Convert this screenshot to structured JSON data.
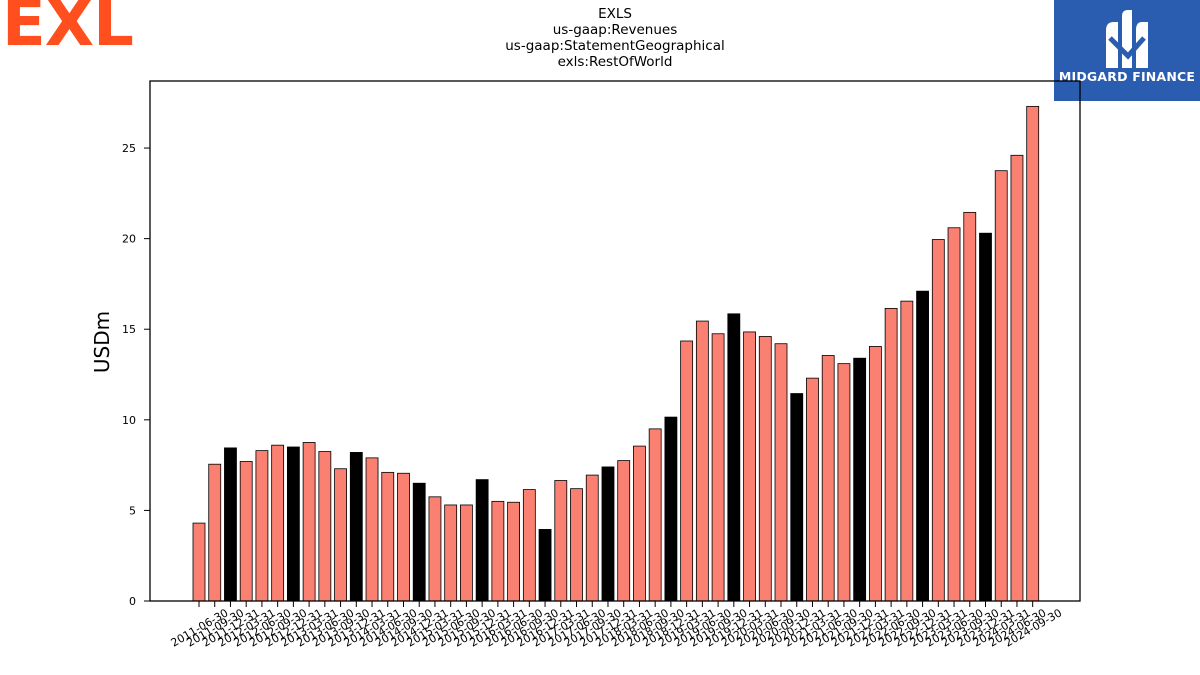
{
  "brand": {
    "logo_text": "EXL",
    "color": "#ff4f1f"
  },
  "partner": {
    "name": "MIDGARD FINANCE",
    "bg_color": "#2a5cb0",
    "logo_icon": "midgard-m-icon"
  },
  "colors": {
    "bar": "#fa8072",
    "highlight": "#000000",
    "edge": "#000000"
  },
  "chart_data": {
    "type": "bar",
    "title_lines": [
      "EXLS",
      "us-gaap:Revenues",
      "us-gaap:StatementGeographical",
      "exls:RestOfWorld"
    ],
    "xlabel": "",
    "ylabel": "USDm",
    "ylim": [
      0,
      28.7
    ],
    "yticks": [
      0,
      5,
      10,
      15,
      20,
      25
    ],
    "grid": false,
    "categories": [
      "2011-06-30",
      "2011-09-30",
      "2011-12-31",
      "2012-03-31",
      "2012-06-30",
      "2012-09-30",
      "2012-12-31",
      "2013-03-31",
      "2013-06-30",
      "2013-09-30",
      "2013-12-31",
      "2014-03-31",
      "2014-06-30",
      "2014-09-30",
      "2014-12-31",
      "2015-03-31",
      "2015-06-30",
      "2015-09-30",
      "2015-12-31",
      "2016-03-31",
      "2016-06-30",
      "2016-09-30",
      "2016-12-31",
      "2017-03-31",
      "2017-06-30",
      "2017-09-30",
      "2017-12-31",
      "2018-03-31",
      "2018-06-30",
      "2018-09-30",
      "2018-12-31",
      "2019-03-31",
      "2019-06-30",
      "2019-09-30",
      "2019-12-31",
      "2020-03-31",
      "2020-06-30",
      "2020-09-30",
      "2020-12-31",
      "2021-03-31",
      "2021-06-30",
      "2021-09-30",
      "2021-12-31",
      "2022-03-31",
      "2022-06-30",
      "2022-09-30",
      "2022-12-31",
      "2023-03-31",
      "2023-06-30",
      "2023-09-30",
      "2023-12-31",
      "2024-03-31",
      "2024-06-30",
      "2024-09-30"
    ],
    "values": [
      4.3,
      7.55,
      8.45,
      7.7,
      8.3,
      8.6,
      8.5,
      8.75,
      8.25,
      7.3,
      8.2,
      7.9,
      7.1,
      7.05,
      6.5,
      5.75,
      5.3,
      5.3,
      6.7,
      5.5,
      5.45,
      6.15,
      3.95,
      6.65,
      6.2,
      6.95,
      7.4,
      7.75,
      8.55,
      9.5,
      10.15,
      14.35,
      15.45,
      14.75,
      15.85,
      14.85,
      14.6,
      14.2,
      11.45,
      12.3,
      13.55,
      13.1,
      13.4,
      14.05,
      16.15,
      16.55,
      17.1,
      19.95,
      20.6,
      21.45,
      20.3,
      23.75,
      24.6,
      27.3
    ],
    "highlighted": [
      false,
      false,
      true,
      false,
      false,
      false,
      true,
      false,
      false,
      false,
      true,
      false,
      false,
      false,
      true,
      false,
      false,
      false,
      true,
      false,
      false,
      false,
      true,
      false,
      false,
      false,
      true,
      false,
      false,
      false,
      true,
      false,
      false,
      false,
      true,
      false,
      false,
      false,
      true,
      false,
      false,
      false,
      true,
      false,
      false,
      false,
      true,
      false,
      false,
      false,
      true,
      false,
      false,
      false
    ]
  }
}
